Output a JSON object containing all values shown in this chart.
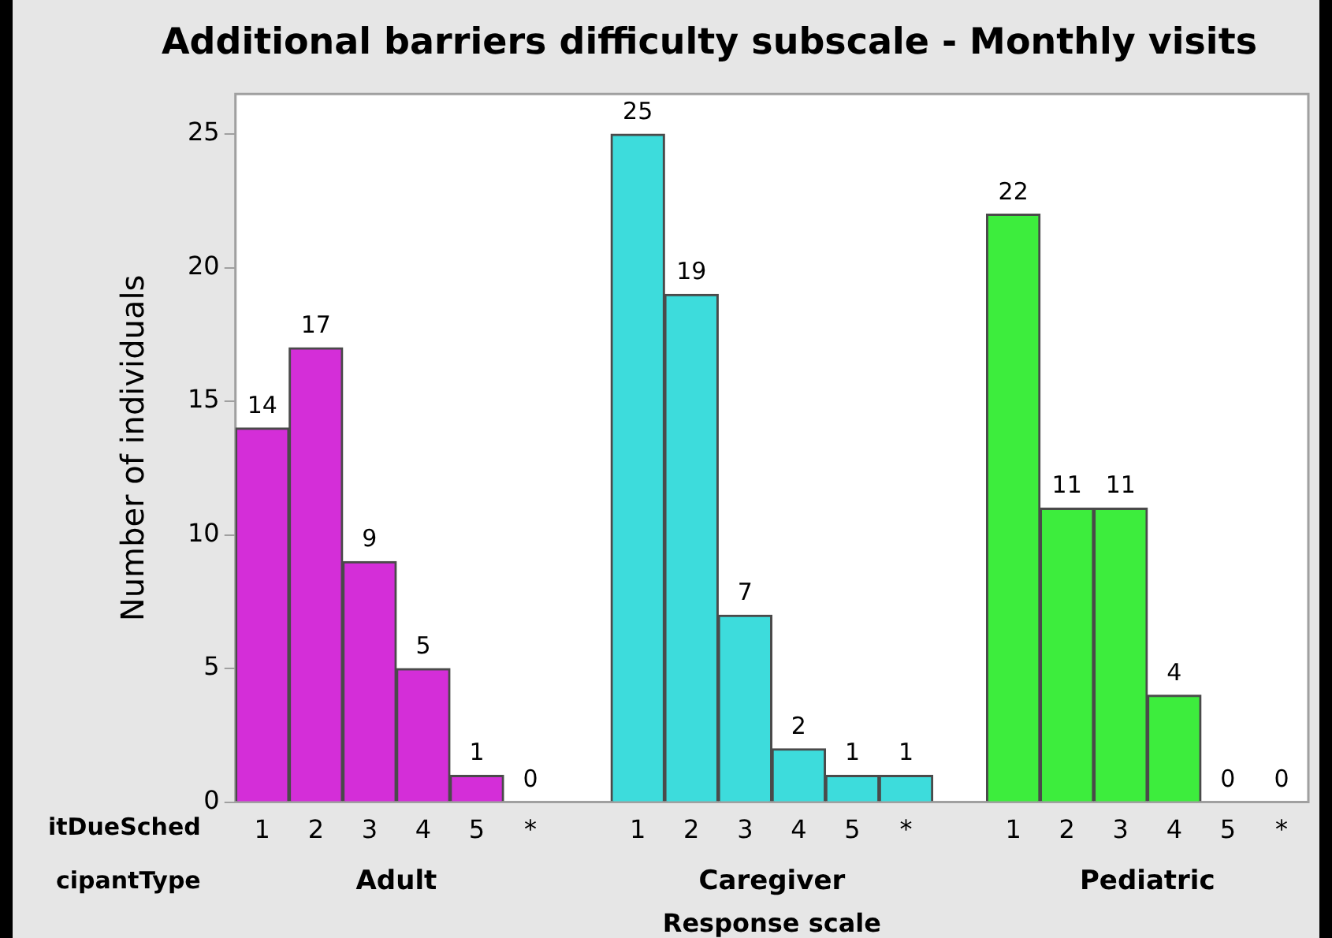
{
  "chart_data": {
    "type": "bar",
    "title": "Additional barriers difficulty subscale - Monthly visits",
    "xlabel": "Response scale",
    "ylabel": "Number of individuals",
    "categories": [
      "1",
      "2",
      "3",
      "4",
      "5",
      "*",
      null,
      "1",
      "2",
      "3",
      "4",
      "5",
      "*",
      null,
      "1",
      "2",
      "3",
      "4",
      "5",
      "*"
    ],
    "series": [
      {
        "name": "Adult",
        "color": "#d42ed8",
        "values": [
          14,
          17,
          9,
          5,
          1,
          0,
          null,
          null,
          null,
          null,
          null,
          null,
          null,
          null,
          null,
          null,
          null,
          null,
          null,
          null
        ]
      },
      {
        "name": "Caregiver",
        "color": "#3ddcdc",
        "values": [
          null,
          null,
          null,
          null,
          null,
          null,
          null,
          25,
          19,
          7,
          2,
          1,
          1,
          null,
          null,
          null,
          null,
          null,
          null,
          null
        ]
      },
      {
        "name": "Pediatric",
        "color": "#3ded3d",
        "values": [
          null,
          null,
          null,
          null,
          null,
          null,
          null,
          null,
          null,
          null,
          null,
          null,
          null,
          null,
          22,
          11,
          11,
          4,
          0,
          0
        ]
      }
    ],
    "ylim": [
      0,
      26.5
    ],
    "yticks": [
      0,
      5,
      10,
      15,
      20,
      25
    ],
    "grid": false,
    "legend": false,
    "data_labels": true,
    "annotations": [
      "itDueSched",
      "cipantType"
    ]
  }
}
